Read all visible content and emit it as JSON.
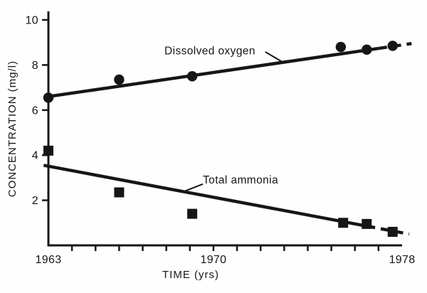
{
  "figure": {
    "background": "#fefefe",
    "ink": "#161616"
  },
  "chart_data": {
    "type": "scatter",
    "title": "",
    "xlabel": "TIME (yrs)",
    "ylabel": "CONCENTRATION (mg/l)",
    "xlim": [
      1963,
      1978
    ],
    "ylim": [
      0,
      10
    ],
    "grid": false,
    "legend_position": "inline-annotations",
    "x_tick_labels": [
      1963,
      1970,
      1978
    ],
    "x_minor_tick_step": 1,
    "y_ticks": [
      2,
      4,
      6,
      8,
      10
    ],
    "series": [
      {
        "name": "Dissolved oxygen",
        "marker": "circle",
        "points": [
          [
            1963.0,
            6.55
          ],
          [
            1966.0,
            7.35
          ],
          [
            1969.1,
            7.5
          ],
          [
            1975.4,
            8.8
          ],
          [
            1976.5,
            8.68
          ],
          [
            1977.6,
            8.85
          ]
        ],
        "trend": {
          "x1": 1963.0,
          "y1": 6.6,
          "x2": 1978.4,
          "y2": 8.95,
          "solid_until": 1977.0
        },
        "label": {
          "text_x": 1969.85,
          "text_y": 8.62,
          "leader": [
            [
              1972.2,
              8.58
            ],
            [
              1972.95,
              8.12
            ]
          ]
        }
      },
      {
        "name": "Total ammonia",
        "marker": "square",
        "points": [
          [
            1963.0,
            4.2
          ],
          [
            1966.0,
            2.35
          ],
          [
            1969.1,
            1.4
          ],
          [
            1975.5,
            1.0
          ],
          [
            1976.5,
            0.95
          ],
          [
            1977.6,
            0.6
          ]
        ],
        "trend": {
          "x1": 1962.8,
          "y1": 3.55,
          "x2": 1978.3,
          "y2": 0.5,
          "solid_until": 1976.5
        },
        "label": {
          "text_x": 1971.15,
          "text_y": 2.9,
          "leader": [
            [
              1969.55,
              2.72
            ],
            [
              1968.75,
              2.39
            ]
          ]
        }
      }
    ]
  }
}
